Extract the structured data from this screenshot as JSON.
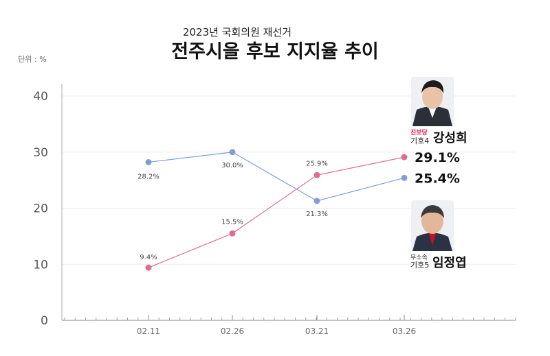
{
  "chart_data": {
    "type": "line",
    "subtitle": "2023년 국회의원 재선거",
    "title": "전주시을 후보 지지율 추이",
    "unit": "단위 : %",
    "categories": [
      "02.11",
      "02.26",
      "03.21",
      "03.26"
    ],
    "ylim": [
      0,
      40
    ],
    "yticks": [
      0,
      10,
      20,
      30,
      40
    ],
    "grid": true,
    "series": [
      {
        "name": "임정엽",
        "color": "#7f9fd6",
        "values": [
          28.2,
          30.0,
          21.3,
          25.4
        ],
        "labels": [
          "28.2%",
          "30.0%",
          "21.3%",
          "25.4%"
        ]
      },
      {
        "name": "강성희",
        "color": "#e06b95",
        "values": [
          9.4,
          15.5,
          25.9,
          29.1
        ],
        "labels": [
          "9.4%",
          "15.5%",
          "25.9%",
          "29.1%"
        ]
      }
    ]
  },
  "candidates": [
    {
      "party": "진보당",
      "number": "기호4",
      "name": "강성희",
      "color": "#e0134b"
    },
    {
      "party": "무소속",
      "number": "기호5",
      "name": "임정엽",
      "color": "#222222"
    }
  ]
}
